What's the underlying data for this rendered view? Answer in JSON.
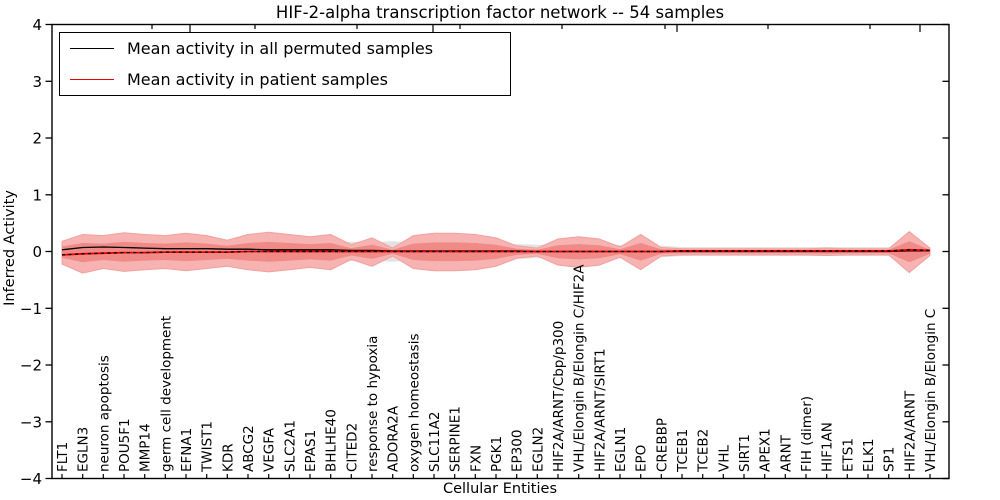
{
  "title": "HIF-2-alpha transcription factor network -- 54 samples",
  "legend": {
    "permuted_label": "Mean activity in all permuted samples",
    "patient_label": "Mean activity in patient samples"
  },
  "colors": {
    "permuted_line": "#000000",
    "patient_line": "#e60000",
    "zero_dash_line": "#000000",
    "red_band_light": "#f6b3b1",
    "red_band_dark": "#ef8a87",
    "gray_band": "#e2e2e2",
    "axis": "#000000"
  },
  "chart_data": {
    "type": "line",
    "title": "HIF-2-alpha transcription factor network -- 54 samples",
    "xlabel": "Cellular Entities",
    "ylabel": "Inferred Activity",
    "ylim": [
      -4,
      4
    ],
    "yticks": [
      4,
      3,
      2,
      1,
      0,
      -1,
      -2,
      -3,
      -4
    ],
    "grid": false,
    "legend_position": "upper left",
    "categories": [
      "FLT1",
      "EGLN3",
      "neuron apoptosis",
      "POU5F1",
      "MMP14",
      "germ cell development",
      "EFNA1",
      "TWIST1",
      "KDR",
      "ABCG2",
      "VEGFA",
      "SLC2A1",
      "EPAS1",
      "BHLHE40",
      "CITED2",
      "response to hypoxia",
      "ADORA2A",
      "oxygen homeostasis",
      "SLC11A2",
      "SERPINE1",
      "FXN",
      "PGK1",
      "EP300",
      "EGLN2",
      "HIF2A/ARNT/Cbp/p300",
      "VHL/Elongin B/Elongin C/HIF2A",
      "HIF2A/ARNT/SIRT1",
      "EGLN1",
      "EPO",
      "CREBBP",
      "TCEB1",
      "TCEB2",
      "VHL",
      "SIRT1",
      "APEX1",
      "ARNT",
      "FIH (dimer)",
      "HIF1AN",
      "ETS1",
      "ELK1",
      "SP1",
      "HIF2A/ARNT",
      "VHL/Elongin B/Elongin C"
    ],
    "series": [
      {
        "name": "Mean activity in all permuted samples",
        "color": "#000000",
        "values": [
          0.03,
          0.07,
          0.08,
          0.07,
          0.06,
          0.05,
          0.05,
          0.05,
          0.04,
          0.04,
          0.03,
          0.03,
          0.03,
          0.03,
          0.02,
          0.02,
          0.01,
          0.01,
          0.01,
          0.01,
          0.01,
          0.01,
          0.01,
          0,
          0,
          0,
          0,
          0,
          0,
          0,
          0,
          0,
          0,
          0,
          0,
          0,
          0,
          0,
          0,
          0,
          0,
          0.01,
          0.01
        ]
      },
      {
        "name": "Mean activity in patient samples",
        "color": "#e60000",
        "values": [
          -0.06,
          -0.04,
          -0.03,
          -0.02,
          -0.02,
          -0.01,
          -0.01,
          -0.01,
          -0.01,
          0,
          0,
          0,
          0,
          0,
          0,
          0,
          0,
          0,
          0,
          0,
          0,
          0,
          0,
          0,
          0,
          0,
          0,
          0,
          0,
          0,
          0.01,
          0.01,
          0.01,
          0.01,
          0.01,
          0.01,
          0.01,
          0.01,
          0.01,
          0.01,
          0.01,
          0.03,
          0.02
        ]
      }
    ],
    "bands": {
      "patient_outer_upper": [
        0.18,
        0.3,
        0.28,
        0.33,
        0.3,
        0.28,
        0.32,
        0.28,
        0.2,
        0.3,
        0.34,
        0.3,
        0.26,
        0.3,
        0.12,
        0.24,
        0.06,
        0.28,
        0.32,
        0.32,
        0.3,
        0.24,
        0.1,
        0.06,
        0.22,
        0.26,
        0.22,
        0.08,
        0.3,
        0.07,
        0.05,
        0.05,
        0.05,
        0.05,
        0.05,
        0.05,
        0.05,
        0.06,
        0.05,
        0.05,
        0.05,
        0.35,
        0.06
      ],
      "patient_outer_lower": [
        -0.22,
        -0.38,
        -0.3,
        -0.35,
        -0.32,
        -0.3,
        -0.34,
        -0.3,
        -0.26,
        -0.32,
        -0.36,
        -0.32,
        -0.28,
        -0.32,
        -0.14,
        -0.26,
        -0.08,
        -0.3,
        -0.34,
        -0.34,
        -0.32,
        -0.26,
        -0.12,
        -0.08,
        -0.24,
        -0.28,
        -0.24,
        -0.1,
        -0.32,
        -0.08,
        -0.06,
        -0.06,
        -0.06,
        -0.06,
        -0.06,
        -0.06,
        -0.06,
        -0.07,
        -0.06,
        -0.06,
        -0.06,
        -0.37,
        -0.07
      ],
      "patient_inner_upper": [
        0.09,
        0.15,
        0.14,
        0.17,
        0.15,
        0.14,
        0.16,
        0.14,
        0.1,
        0.15,
        0.17,
        0.15,
        0.13,
        0.15,
        0.06,
        0.12,
        0.03,
        0.14,
        0.16,
        0.16,
        0.15,
        0.12,
        0.05,
        0.03,
        0.11,
        0.13,
        0.11,
        0.04,
        0.15,
        0.04,
        0.03,
        0.03,
        0.03,
        0.03,
        0.03,
        0.03,
        0.03,
        0.03,
        0.03,
        0.03,
        0.03,
        0.18,
        0.03
      ],
      "patient_inner_lower": [
        -0.11,
        -0.19,
        -0.15,
        -0.18,
        -0.16,
        -0.15,
        -0.17,
        -0.15,
        -0.13,
        -0.16,
        -0.18,
        -0.16,
        -0.14,
        -0.16,
        -0.07,
        -0.13,
        -0.04,
        -0.15,
        -0.17,
        -0.17,
        -0.16,
        -0.13,
        -0.06,
        -0.04,
        -0.12,
        -0.14,
        -0.12,
        -0.05,
        -0.16,
        -0.04,
        -0.03,
        -0.03,
        -0.03,
        -0.03,
        -0.03,
        -0.03,
        -0.03,
        -0.04,
        -0.03,
        -0.03,
        -0.03,
        -0.19,
        -0.04
      ],
      "permuted_upper": [
        0.17,
        0.17,
        0.17,
        0.17,
        0.17,
        0.16,
        0.16,
        0.16,
        0.16,
        0.16,
        0.16,
        0.16,
        0.16,
        0.16,
        0.17,
        0.16,
        0.18,
        0.15,
        0.15,
        0.15,
        0.15,
        0.14,
        0.13,
        0.12,
        0.12,
        0.12,
        0.12,
        0.12,
        0.12,
        0.1,
        0.08,
        0.08,
        0.08,
        0.08,
        0.08,
        0.08,
        0.08,
        0.08,
        0.08,
        0.08,
        0.08,
        0.09,
        0.08
      ],
      "permuted_lower": [
        -0.17,
        -0.17,
        -0.17,
        -0.17,
        -0.17,
        -0.16,
        -0.16,
        -0.16,
        -0.16,
        -0.16,
        -0.16,
        -0.16,
        -0.16,
        -0.16,
        -0.17,
        -0.16,
        -0.18,
        -0.15,
        -0.15,
        -0.15,
        -0.15,
        -0.14,
        -0.13,
        -0.12,
        -0.12,
        -0.12,
        -0.12,
        -0.12,
        -0.12,
        -0.1,
        -0.08,
        -0.08,
        -0.08,
        -0.08,
        -0.08,
        -0.08,
        -0.08,
        -0.08,
        -0.08,
        -0.08,
        -0.08,
        -0.09,
        -0.08
      ]
    }
  }
}
